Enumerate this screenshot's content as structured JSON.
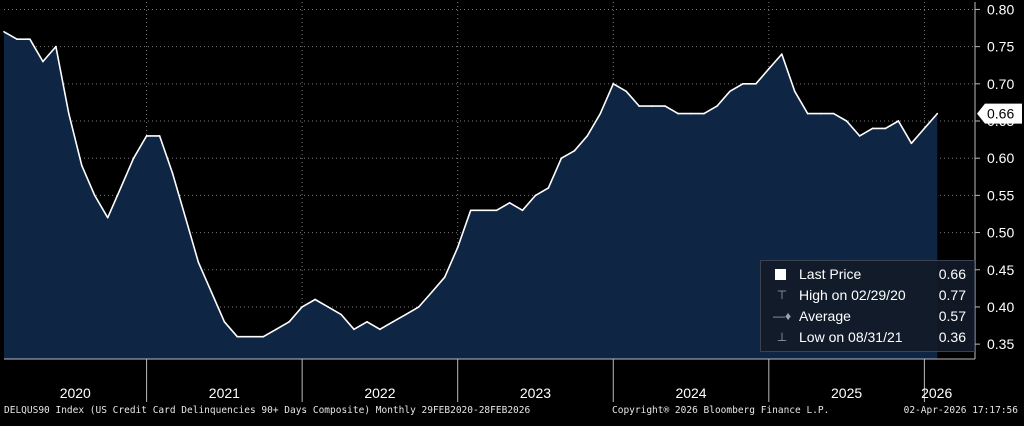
{
  "chart_data": {
    "type": "area",
    "x": [
      "2020-02",
      "2020-03",
      "2020-04",
      "2020-05",
      "2020-06",
      "2020-07",
      "2020-08",
      "2020-09",
      "2020-10",
      "2020-11",
      "2020-12",
      "2021-01",
      "2021-02",
      "2021-03",
      "2021-04",
      "2021-05",
      "2021-06",
      "2021-07",
      "2021-08",
      "2021-09",
      "2021-10",
      "2021-11",
      "2021-12",
      "2022-01",
      "2022-02",
      "2022-03",
      "2022-04",
      "2022-05",
      "2022-06",
      "2022-07",
      "2022-08",
      "2022-09",
      "2022-10",
      "2022-11",
      "2022-12",
      "2023-01",
      "2023-02",
      "2023-03",
      "2023-04",
      "2023-05",
      "2023-06",
      "2023-07",
      "2023-08",
      "2023-09",
      "2023-10",
      "2023-11",
      "2023-12",
      "2024-01",
      "2024-02",
      "2024-03",
      "2024-04",
      "2024-05",
      "2024-06",
      "2024-07",
      "2024-08",
      "2024-09",
      "2024-10",
      "2024-11",
      "2024-12",
      "2025-01",
      "2025-02",
      "2025-03",
      "2025-04",
      "2025-05",
      "2025-06",
      "2025-07",
      "2025-08",
      "2025-09",
      "2025-10",
      "2025-11",
      "2025-12",
      "2026-01",
      "2026-02"
    ],
    "series": [
      {
        "name": "Last Price",
        "values": [
          0.77,
          0.76,
          0.76,
          0.73,
          0.75,
          0.66,
          0.59,
          0.55,
          0.52,
          0.56,
          0.6,
          0.63,
          0.63,
          0.58,
          0.52,
          0.46,
          0.42,
          0.38,
          0.36,
          0.36,
          0.36,
          0.37,
          0.38,
          0.4,
          0.41,
          0.4,
          0.39,
          0.37,
          0.38,
          0.37,
          0.38,
          0.39,
          0.4,
          0.42,
          0.44,
          0.48,
          0.53,
          0.53,
          0.53,
          0.54,
          0.53,
          0.55,
          0.56,
          0.6,
          0.61,
          0.63,
          0.66,
          0.7,
          0.69,
          0.67,
          0.67,
          0.67,
          0.66,
          0.66,
          0.66,
          0.67,
          0.69,
          0.7,
          0.7,
          0.72,
          0.74,
          0.69,
          0.66,
          0.66,
          0.66,
          0.65,
          0.63,
          0.64,
          0.64,
          0.65,
          0.62,
          0.64,
          0.66
        ]
      }
    ],
    "ylim": [
      0.33,
      0.81
    ],
    "yticks": [
      "0.80",
      "0.75",
      "0.70",
      "0.65",
      "0.60",
      "0.55",
      "0.50",
      "0.45",
      "0.40",
      "0.35"
    ],
    "year_labels": [
      "2020",
      "2021",
      "2022",
      "2023",
      "2024",
      "2025",
      "2026"
    ],
    "last_value_tag": "0.66",
    "grid": true,
    "legend": {
      "placement": "bottom-right",
      "items": [
        {
          "label": "Last Price",
          "value": "0.66"
        },
        {
          "label": "High on 02/29/20",
          "value": "0.77"
        },
        {
          "label": "Average",
          "value": "0.57"
        },
        {
          "label": "Low on 08/31/21",
          "value": "0.36"
        }
      ]
    }
  },
  "footer": {
    "left": "DELQUS90 Index (US Credit Card Delinquencies 90+ Days Composite) Monthly 29FEB2020-28FEB2026",
    "center": "Copyright® 2026 Bloomberg Finance L.P.",
    "right": "02-Apr-2026 17:17:56"
  },
  "colors": {
    "area_fill": "#0f2544",
    "line": "#ffffff",
    "grid": "#7a7a7a",
    "background": "#000000",
    "tag_background": "#ffffff"
  }
}
